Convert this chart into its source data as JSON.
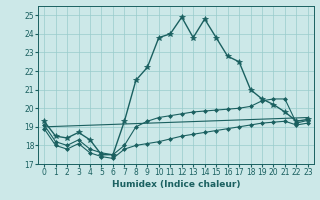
{
  "xlabel": "Humidex (Indice chaleur)",
  "xlim": [
    -0.5,
    23.5
  ],
  "ylim": [
    17,
    25.5
  ],
  "yticks": [
    17,
    18,
    19,
    20,
    21,
    22,
    23,
    24,
    25
  ],
  "xticks": [
    0,
    1,
    2,
    3,
    4,
    5,
    6,
    7,
    8,
    9,
    10,
    11,
    12,
    13,
    14,
    15,
    16,
    17,
    18,
    19,
    20,
    21,
    22,
    23
  ],
  "bg_color": "#cce8e8",
  "grid_color": "#99cccc",
  "line_color": "#1a6060",
  "series": [
    {
      "x": [
        0,
        1,
        2,
        3,
        4,
        5,
        6,
        7,
        8,
        9,
        10,
        11,
        12,
        13,
        14,
        15,
        16,
        17,
        18,
        19,
        20,
        21,
        22,
        23
      ],
      "y": [
        19.3,
        18.5,
        18.4,
        18.7,
        18.3,
        17.5,
        17.5,
        19.3,
        21.5,
        22.2,
        23.8,
        24.0,
        24.9,
        23.8,
        24.8,
        23.8,
        22.8,
        22.5,
        21.0,
        20.5,
        20.2,
        19.8,
        19.3,
        19.4
      ],
      "marker": "*",
      "markersize": 4,
      "linewidth": 1.0
    },
    {
      "x": [
        0,
        1,
        2,
        3,
        4,
        5,
        6,
        7,
        8,
        9,
        10,
        11,
        12,
        13,
        14,
        15,
        16,
        17,
        18,
        19,
        20,
        21,
        22,
        23
      ],
      "y": [
        19.1,
        18.2,
        18.0,
        18.3,
        17.8,
        17.6,
        17.5,
        18.0,
        19.0,
        19.3,
        19.5,
        19.6,
        19.7,
        19.8,
        19.85,
        19.9,
        19.95,
        20.0,
        20.1,
        20.4,
        20.5,
        20.5,
        19.2,
        19.35
      ],
      "marker": "D",
      "markersize": 2,
      "linewidth": 0.8
    },
    {
      "x": [
        0,
        1,
        2,
        3,
        4,
        5,
        6,
        7,
        8,
        9,
        10,
        11,
        12,
        13,
        14,
        15,
        16,
        17,
        18,
        19,
        20,
        21,
        22,
        23
      ],
      "y": [
        18.9,
        18.0,
        17.8,
        18.1,
        17.6,
        17.4,
        17.3,
        17.8,
        18.0,
        18.1,
        18.2,
        18.35,
        18.5,
        18.6,
        18.7,
        18.8,
        18.9,
        19.0,
        19.1,
        19.2,
        19.25,
        19.3,
        19.1,
        19.2
      ],
      "marker": "D",
      "markersize": 2,
      "linewidth": 0.8
    },
    {
      "x": [
        0,
        23
      ],
      "y": [
        19.0,
        19.5
      ],
      "marker": null,
      "markersize": 0,
      "linewidth": 0.8
    }
  ]
}
